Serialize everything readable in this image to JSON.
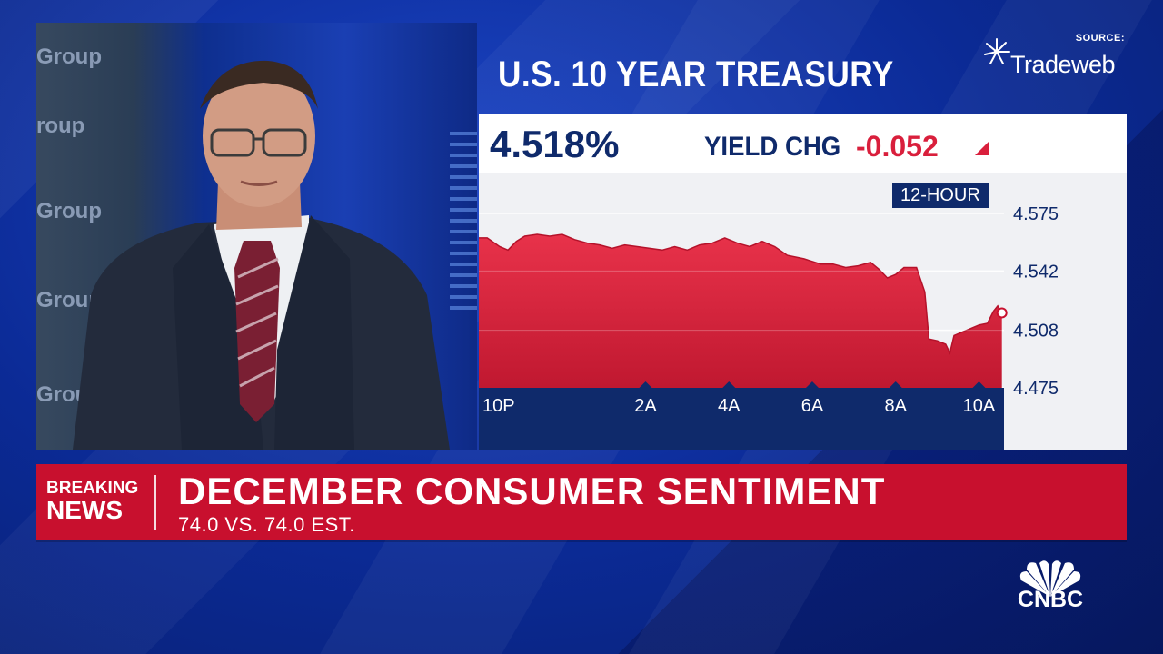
{
  "network": {
    "logo_text": "CNBC"
  },
  "studio": {
    "wall_text": [
      "Group",
      "roup",
      "Group",
      "Group",
      "Grou"
    ]
  },
  "source": {
    "label": "SOURCE:",
    "name": "Tradeweb"
  },
  "header": {
    "title": "U.S. 10 YEAR TREASURY",
    "yield_value": "4.518%",
    "yield_change_label": "YIELD CHG",
    "yield_change_value": "-0.052",
    "timeframe": "12-HOUR"
  },
  "breaking": {
    "tag_line1": "BREAKING",
    "tag_line2": "NEWS",
    "headline": "DECEMBER CONSUMER SENTIMENT",
    "subline": "74.0 VS. 74.0 EST."
  },
  "colors": {
    "accent_red": "#d91f3c",
    "navy": "#0f2a6b",
    "background_blue": "#0b2a95"
  },
  "chart_data": {
    "type": "area",
    "title": "U.S. 10 YEAR TREASURY",
    "x_tick_labels": [
      "10P",
      "2A",
      "4A",
      "6A",
      "8A",
      "10A"
    ],
    "x_tick_hours": [
      -2,
      2,
      4,
      6,
      8,
      10
    ],
    "y_tick_labels": [
      "4.575",
      "4.542",
      "4.508",
      "4.475"
    ],
    "y_ticks": [
      4.575,
      4.542,
      4.508,
      4.475
    ],
    "ylim": [
      4.475,
      4.575
    ],
    "xlim": [
      -2,
      10.6
    ],
    "last_value": 4.518,
    "series": [
      {
        "values": [
          [
            -2.0,
            4.561
          ],
          [
            -1.8,
            4.561
          ],
          [
            -1.5,
            4.556
          ],
          [
            -1.3,
            4.554
          ],
          [
            -1.1,
            4.559
          ],
          [
            -0.9,
            4.562
          ],
          [
            -0.6,
            4.563
          ],
          [
            -0.3,
            4.562
          ],
          [
            0.0,
            4.563
          ],
          [
            0.3,
            4.56
          ],
          [
            0.6,
            4.558
          ],
          [
            0.9,
            4.557
          ],
          [
            1.2,
            4.555
          ],
          [
            1.5,
            4.557
          ],
          [
            1.8,
            4.556
          ],
          [
            2.1,
            4.555
          ],
          [
            2.4,
            4.554
          ],
          [
            2.7,
            4.556
          ],
          [
            3.0,
            4.554
          ],
          [
            3.3,
            4.557
          ],
          [
            3.6,
            4.558
          ],
          [
            3.9,
            4.561
          ],
          [
            4.2,
            4.558
          ],
          [
            4.5,
            4.556
          ],
          [
            4.8,
            4.559
          ],
          [
            5.1,
            4.556
          ],
          [
            5.4,
            4.551
          ],
          [
            5.8,
            4.549
          ],
          [
            6.2,
            4.546
          ],
          [
            6.5,
            4.546
          ],
          [
            6.8,
            4.544
          ],
          [
            7.1,
            4.545
          ],
          [
            7.4,
            4.547
          ],
          [
            7.6,
            4.543
          ],
          [
            7.8,
            4.538
          ],
          [
            8.0,
            4.54
          ],
          [
            8.2,
            4.544
          ],
          [
            8.5,
            4.544
          ],
          [
            8.7,
            4.53
          ],
          [
            8.8,
            4.503
          ],
          [
            9.0,
            4.502
          ],
          [
            9.2,
            4.5
          ],
          [
            9.3,
            4.495
          ],
          [
            9.4,
            4.505
          ],
          [
            9.6,
            4.507
          ],
          [
            9.8,
            4.509
          ],
          [
            10.0,
            4.511
          ],
          [
            10.2,
            4.512
          ],
          [
            10.35,
            4.519
          ],
          [
            10.45,
            4.522
          ],
          [
            10.55,
            4.518
          ]
        ]
      }
    ]
  }
}
